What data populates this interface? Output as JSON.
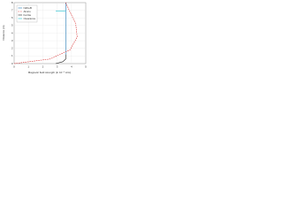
{
  "chart_data": {
    "type": "line",
    "xlabel": "Magnetic field strength (in 10⁻⁴ A/m)",
    "ylabel": "Distance (m)",
    "xlim": [
      0,
      5
    ],
    "xticks": [
      0,
      1,
      2,
      3,
      4,
      5
    ],
    "ylim": [
      0,
      8
    ],
    "yticks": [
      0,
      1,
      2,
      3,
      4,
      5,
      6,
      7,
      8
    ],
    "grid": true,
    "legend": "upper left",
    "series": [
      {
        "name": "NdFeB",
        "color": "#1f77b4",
        "style": "solid",
        "x": [
          3.6,
          3.6
        ],
        "values": [
          1.2,
          8
        ]
      },
      {
        "name": "Alnico",
        "color": "#d62728",
        "style": "dashed",
        "x": [
          0,
          2.5,
          3.9,
          4.4,
          4.3,
          3.9,
          3.6
        ],
        "values": [
          0,
          0.6,
          1.8,
          3.5,
          5.2,
          6.8,
          8
        ]
      },
      {
        "name": "Ferrite",
        "color": "#222222",
        "style": "solid",
        "x": [
          3.6,
          3.6,
          3.4,
          2.9
        ],
        "values": [
          1.2,
          0.6,
          0.25,
          0
        ]
      },
      {
        "name": "Clearance",
        "color": "#17becf",
        "style": "solid",
        "x": [
          2.9,
          3.6
        ],
        "values": [
          6.9,
          6.9
        ]
      }
    ]
  }
}
